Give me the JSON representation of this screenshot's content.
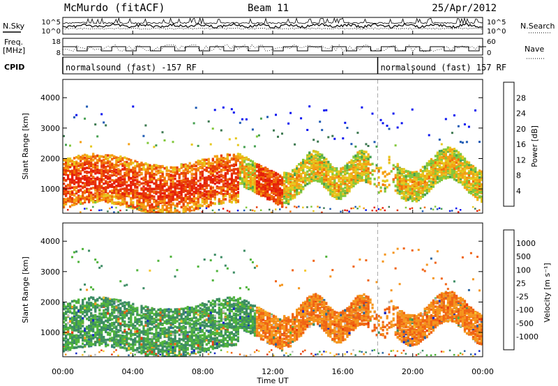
{
  "header": {
    "station": "McMurdo (fitACF)",
    "beam": "Beam 11",
    "date": "25/Apr/2012"
  },
  "side_labels": {
    "nsky": "N.Sky",
    "nsearch": "N.Search",
    "freq": "Freq.",
    "freq_unit": "[MHz]",
    "nave": "Nave",
    "cpid": "CPID"
  },
  "chart_data": [
    {
      "type": "line",
      "name": "noise-panel",
      "left_ticks": [
        "10^5",
        "10^0"
      ],
      "right_ticks": [
        "10^5",
        "10^0"
      ],
      "x_range": [
        0,
        24
      ]
    },
    {
      "type": "line",
      "name": "freq-nave-panel",
      "left_ticks": [
        "18",
        "8"
      ],
      "right_ticks": [
        "60",
        "0"
      ],
      "ylim_freq": [
        8,
        18
      ],
      "ylim_nave": [
        0,
        60
      ],
      "x_range": [
        0,
        24
      ]
    },
    {
      "type": "table",
      "name": "cpid-panel",
      "segments": [
        {
          "label": "normalsound (fast) -157 RF",
          "start": 0,
          "end": 18
        },
        {
          "label": "normalsound (fast) 157 RF",
          "start": 18,
          "end": 24
        }
      ]
    },
    {
      "type": "heatmap",
      "name": "power",
      "ylabel": "Slant Range [km]",
      "yticks": [
        1000,
        2000,
        3000,
        4000
      ],
      "ylim": [
        200,
        4600
      ],
      "x_range": [
        0,
        24
      ],
      "colorbar": {
        "title": "Power [dB]",
        "ticks": [
          "4",
          "8",
          "12",
          "16",
          "20",
          "24",
          "28"
        ],
        "colors": [
          "#0a14f0",
          "#1e5ab4",
          "#3c7850",
          "#46a050",
          "#82c83c",
          "#e6c81e",
          "#f5a014",
          "#f06e0a",
          "#e63c0a",
          "#e61e0a"
        ]
      }
    },
    {
      "type": "heatmap",
      "name": "velocity",
      "ylabel": "Slant Range [km]",
      "yticks": [
        1000,
        2000,
        3000,
        4000
      ],
      "ylim": [
        200,
        4600
      ],
      "x_range": [
        0,
        24
      ],
      "xticks": [
        "00:00",
        "04:00",
        "08:00",
        "12:00",
        "16:00",
        "20:00",
        "00:00"
      ],
      "xlabel": "Time UT",
      "colorbar": {
        "title": "Velocity [m s⁻¹]",
        "ticks": [
          "1000",
          "500",
          "100",
          "25",
          "-25",
          "-100",
          "-500",
          "-1000"
        ],
        "colors": [
          "#1428c8",
          "#2864a0",
          "#3c8c64",
          "#50b43c",
          "#bebebe",
          "#f5c832",
          "#f5961e",
          "#f06414",
          "#e63c0a"
        ]
      }
    }
  ]
}
